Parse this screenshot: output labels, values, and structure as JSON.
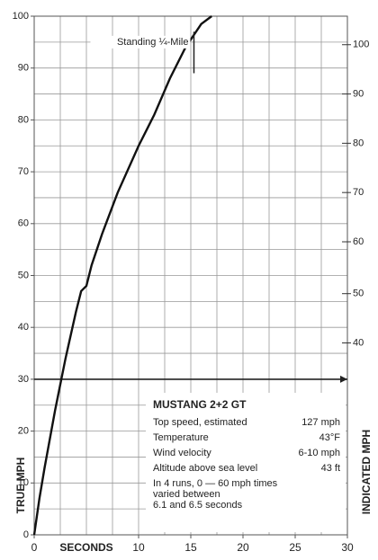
{
  "chart_data": {
    "type": "line",
    "title": "MUSTANG 2+2 GT",
    "x_label": "SECONDS",
    "y_label": "TRUE MPH",
    "y2_label": "INDICATED MPH",
    "x": [
      0,
      0.5,
      1,
      2,
      3,
      4,
      4.5,
      5,
      5.5,
      6.5,
      8,
      10,
      11,
      11.5,
      13,
      14.5,
      16,
      17
    ],
    "series": [
      {
        "name": null,
        "color": "#111111",
        "values": [
          0,
          7,
          13,
          24,
          34,
          43,
          47,
          48,
          52,
          58,
          66,
          75,
          79,
          81,
          88,
          94,
          98.5,
          100
        ]
      }
    ],
    "xlim": [
      0,
      30
    ],
    "xticks": [
      0,
      10,
      15,
      20,
      25,
      30
    ],
    "ylim": [
      0,
      100
    ],
    "yticks": [
      0,
      10,
      20,
      30,
      40,
      50,
      60,
      70,
      80,
      90,
      100
    ],
    "y2ticks": [
      40,
      50,
      60,
      70,
      80,
      90,
      100
    ],
    "indicated_at_true_mph": [
      37,
      46.5,
      56.5,
      66,
      75.5,
      85,
      94.5
    ],
    "grid_x_step": 2.5,
    "grid_y_step": 5,
    "grid": true,
    "reference_line": 30,
    "quarter_mile": {
      "label": "Standing ¼-Mile",
      "seconds": 15.3,
      "mph_range": [
        89,
        97
      ]
    },
    "info_box": {
      "rows": [
        [
          "Top speed, estimated",
          "127 mph"
        ],
        [
          "Temperature",
          "43°F"
        ],
        [
          "Wind velocity",
          "6-10 mph"
        ],
        [
          "Altitude above sea level",
          "43 ft"
        ]
      ],
      "note": [
        "In 4 runs, 0 — 60 mph times",
        "varied between",
        "6.1 and 6.5 seconds"
      ]
    }
  }
}
